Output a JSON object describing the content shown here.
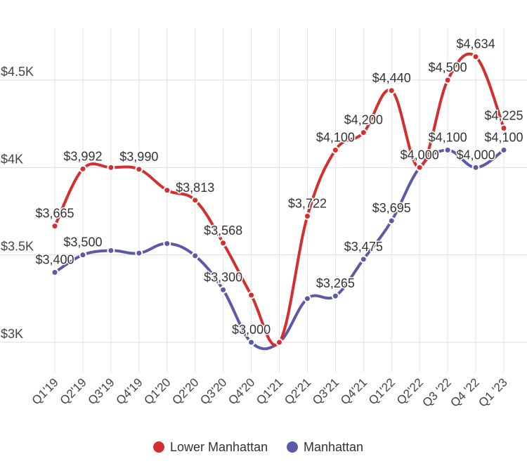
{
  "chart_data": {
    "type": "line",
    "title": "",
    "xlabel": "",
    "ylabel": "",
    "categories": [
      "Q1'19",
      "Q2'19",
      "Q3'19",
      "Q4'19",
      "Q1'20",
      "Q2'20",
      "Q3'20",
      "Q4'20",
      "Q1'21",
      "Q2'21",
      "Q3'21",
      "Q4'21",
      "Q1'22",
      "Q2'22",
      "Q3 '22",
      "Q4 '22",
      "Q1 '23"
    ],
    "ylim": [
      2750,
      4800
    ],
    "yticks": [
      {
        "value": 3000,
        "label": "$3K"
      },
      {
        "value": 3500,
        "label": "$3.5K"
      },
      {
        "value": 4000,
        "label": "$4K"
      },
      {
        "value": 4500,
        "label": "$4.5K"
      }
    ],
    "grid": true,
    "legend": "bottom",
    "series": [
      {
        "name": "Lower Manhattan",
        "color": "#d32f2f",
        "values": [
          3665,
          3992,
          4000,
          3990,
          3870,
          3813,
          3568,
          3270,
          3000,
          3722,
          4100,
          4200,
          4440,
          4000,
          4500,
          4634,
          4225
        ],
        "labels": [
          "$3,665",
          "$3,992",
          "",
          "$3,990",
          "",
          "$3,813",
          "$3,568",
          "",
          "",
          "$3,722",
          "$4,100",
          "$4,200",
          "$4,440",
          "",
          "$4,500",
          "$4,634",
          "$4,225"
        ]
      },
      {
        "name": "Manhattan",
        "color": "#5c5aa8",
        "values": [
          3400,
          3500,
          3525,
          3510,
          3565,
          3495,
          3300,
          3000,
          3000,
          3250,
          3265,
          3475,
          3695,
          4000,
          4100,
          4000,
          4100
        ],
        "labels": [
          "$3,400",
          "$3,500",
          "",
          "",
          "",
          "",
          "$3,300",
          "$3,000",
          "",
          "",
          "$3,265",
          "$3,475",
          "$3,695",
          "$4,000",
          "$4,100",
          "$4,000",
          "$4,100"
        ]
      }
    ]
  }
}
